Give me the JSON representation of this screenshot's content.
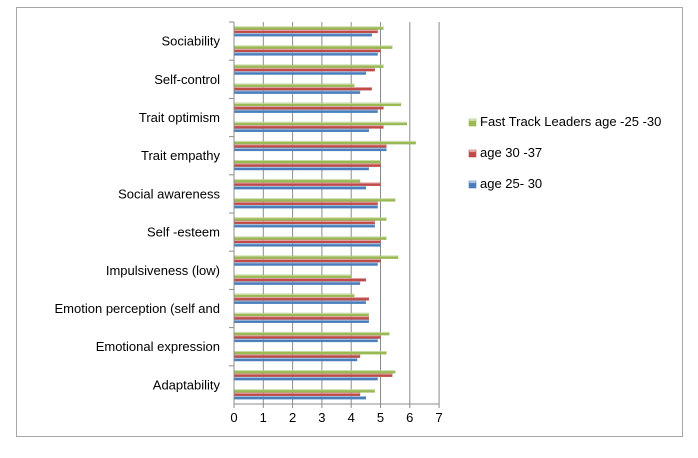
{
  "chart_data": {
    "type": "bar",
    "orientation": "horizontal",
    "categories": [
      "Adaptability",
      "Emotional expression",
      "Emotion perception (self and",
      "Impulsiveness (low)",
      "Self -esteem",
      "Social awareness",
      "Trait empathy",
      "Trait optimism",
      "Self-control",
      "Sociability"
    ],
    "category_groups": [
      [
        {
          "age 25- 30": 4.5,
          "age 30 -37": 4.3,
          "Fast Track Leaders age -25 -30": 4.8
        },
        {
          "age 25- 30": 4.9,
          "age 30 -37": 5.4,
          "Fast Track Leaders age -25 -30": 5.5
        }
      ],
      [
        {
          "age 25- 30": 4.2,
          "age 30 -37": 4.3,
          "Fast Track Leaders age -25 -30": 5.2
        },
        {
          "age 25- 30": 4.9,
          "age 30 -37": 5.0,
          "Fast Track Leaders age -25 -30": 5.3
        }
      ],
      [
        {
          "age 25- 30": 4.6,
          "age 30 -37": 4.6,
          "Fast Track Leaders age -25 -30": 4.6
        },
        {
          "age 25- 30": 4.5,
          "age 30 -37": 4.6,
          "Fast Track Leaders age -25 -30": 4.1
        }
      ],
      [
        {
          "age 25- 30": 4.3,
          "age 30 -37": 4.5,
          "Fast Track Leaders age -25 -30": 4.0
        },
        {
          "age 25- 30": 4.9,
          "age 30 -37": 5.0,
          "Fast Track Leaders age -25 -30": 5.6
        }
      ],
      [
        {
          "age 25- 30": 5.0,
          "age 30 -37": 5.0,
          "Fast Track Leaders age -25 -30": 5.2
        },
        {
          "age 25- 30": 4.8,
          "age 30 -37": 4.8,
          "Fast Track Leaders age -25 -30": 5.2
        }
      ],
      [
        {
          "age 25- 30": 4.9,
          "age 30 -37": 4.9,
          "Fast Track Leaders age -25 -30": 5.5
        },
        {
          "age 25- 30": 4.5,
          "age 30 -37": 5.0,
          "Fast Track Leaders age -25 -30": 4.3
        }
      ],
      [
        {
          "age 25- 30": 4.6,
          "age 30 -37": 5.0,
          "Fast Track Leaders age -25 -30": 5.0
        },
        {
          "age 25- 30": 5.2,
          "age 30 -37": 5.2,
          "Fast Track Leaders age -25 -30": 6.2
        }
      ],
      [
        {
          "age 25- 30": 4.6,
          "age 30 -37": 5.1,
          "Fast Track Leaders age -25 -30": 5.9
        },
        {
          "age 25- 30": 4.9,
          "age 30 -37": 5.1,
          "Fast Track Leaders age -25 -30": 5.7
        }
      ],
      [
        {
          "age 25- 30": 4.3,
          "age 30 -37": 4.7,
          "Fast Track Leaders age -25 -30": 4.1
        },
        {
          "age 25- 30": 4.5,
          "age 30 -37": 4.8,
          "Fast Track Leaders age -25 -30": 5.1
        }
      ],
      [
        {
          "age 25- 30": 4.9,
          "age 30 -37": 5.0,
          "Fast Track Leaders age -25 -30": 5.4
        },
        {
          "age 25- 30": 4.7,
          "age 30 -37": 4.9,
          "Fast Track Leaders age -25 -30": 5.1
        }
      ]
    ],
    "series": [
      {
        "name": "age 25- 30",
        "color": "#4a7ebb"
      },
      {
        "name": "age 30 -37",
        "color": "#be4b48"
      },
      {
        "name": "Fast Track Leaders age -25 -30",
        "color": "#98b954"
      }
    ],
    "legend_order": [
      "Fast Track Leaders age -25 -30",
      "age 30 -37",
      "age 25- 30"
    ],
    "x_ticks": [
      0,
      1,
      2,
      3,
      4,
      5,
      6,
      7
    ],
    "xlim": [
      0,
      7
    ],
    "grid": "vertical major gridlines",
    "legend_position": "right"
  }
}
